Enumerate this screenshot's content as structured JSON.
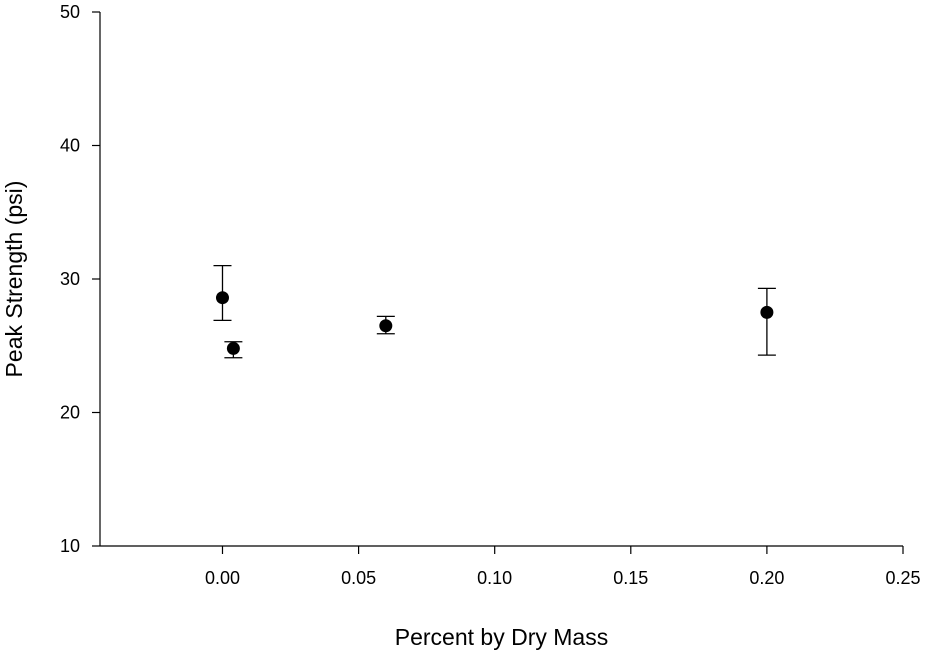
{
  "chart_data": {
    "type": "scatter",
    "xlabel": "Percent by Dry Mass",
    "ylabel": "Peak Strength (psi)",
    "xlim": [
      -0.045,
      0.25
    ],
    "ylim": [
      10,
      50
    ],
    "x_ticks": [
      0.0,
      0.05,
      0.1,
      0.15,
      0.2,
      0.25
    ],
    "x_tick_labels": [
      "0.00",
      "0.05",
      "0.10",
      "0.15",
      "0.20",
      "0.25"
    ],
    "y_ticks": [
      10,
      20,
      30,
      40,
      50
    ],
    "y_tick_labels": [
      "10",
      "20",
      "30",
      "40",
      "50"
    ],
    "grid": false,
    "marker_color": "#000000",
    "points": [
      {
        "x": 0.0,
        "y": 28.6,
        "err_low": 26.9,
        "err_high": 31.0
      },
      {
        "x": 0.004,
        "y": 24.8,
        "err_low": 24.1,
        "err_high": 25.3
      },
      {
        "x": 0.06,
        "y": 26.5,
        "err_low": 25.9,
        "err_high": 27.2
      },
      {
        "x": 0.2,
        "y": 27.5,
        "err_low": 24.3,
        "err_high": 29.3
      }
    ]
  }
}
